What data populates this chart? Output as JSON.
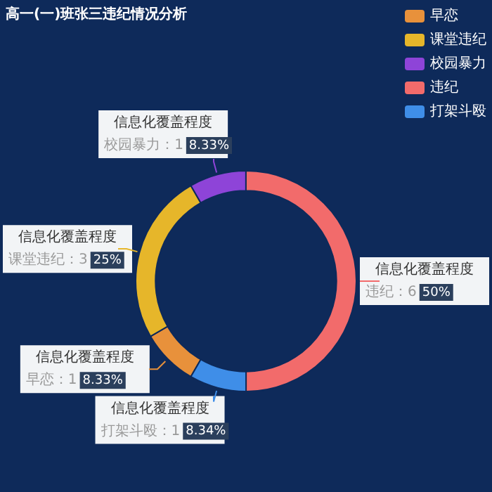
{
  "chart_data": {
    "type": "donut",
    "title": "高一(一)班张三违纪情况分析",
    "categories": [
      "早恋",
      "课堂违纪",
      "校园暴力",
      "违纪",
      "打架斗殴"
    ],
    "values": [
      8.33,
      25,
      8.33,
      50,
      8.34
    ],
    "colors": [
      "#e8913b",
      "#e6b62a",
      "#8e44d8",
      "#f26b6b",
      "#3f8ee8"
    ],
    "value_labels": [
      "8.33%",
      "25%",
      "8.33%",
      "50%",
      "8.34%"
    ],
    "annotations": [
      "信息化覆盖程度",
      "：1",
      "：3",
      "：1",
      "：6",
      "：1"
    ],
    "legend": "top right"
  }
}
